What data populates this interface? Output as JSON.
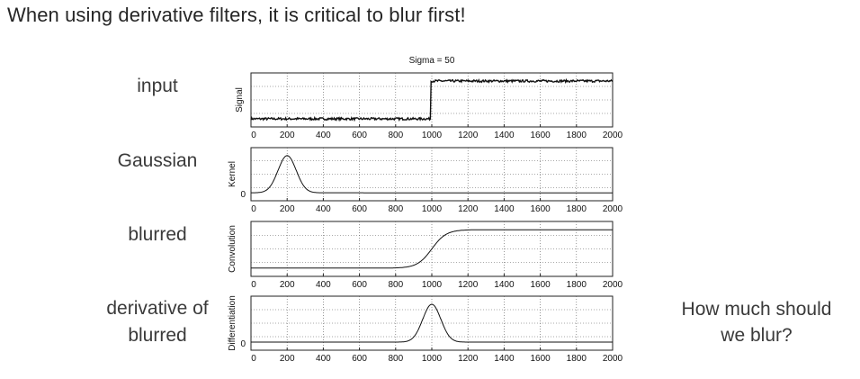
{
  "slide": {
    "title": "When using derivative filters, it is critical to blur first!",
    "side_note": "How much should we blur?"
  },
  "row_labels": [
    "input",
    "Gaussian",
    "blurred",
    "derivative of blurred"
  ],
  "chart_data": {
    "type": "line",
    "title": "Sigma = 50",
    "xlim": [
      0,
      2000
    ],
    "x_ticks": [
      0,
      200,
      400,
      600,
      800,
      1000,
      1200,
      1400,
      1600,
      1800,
      2000
    ],
    "grid": true,
    "panels": [
      {
        "ylabel": "Signal",
        "y_ticks": [],
        "series": [
          {
            "description": "noisy step",
            "x": [
              0,
              995,
              1005,
              2000
            ],
            "y": [
              0,
              0,
              1,
              1
            ],
            "noise": 0.03
          }
        ]
      },
      {
        "ylabel": "Kernel",
        "y_ticks": [
          "0"
        ],
        "series": [
          {
            "description": "gaussian kernel",
            "center": 200,
            "sigma": 50,
            "peak": 1,
            "baseline": 0
          }
        ]
      },
      {
        "ylabel": "Convolution",
        "y_ticks": [],
        "series": [
          {
            "description": "smoothed step",
            "x": [
              0,
              850,
              1000,
              1150,
              2000
            ],
            "y": [
              0,
              0.02,
              0.5,
              0.98,
              1
            ]
          }
        ]
      },
      {
        "ylabel": "Differentiation",
        "y_ticks": [
          "0"
        ],
        "series": [
          {
            "description": "gaussian bump",
            "center": 1000,
            "sigma": 50,
            "peak": 1,
            "baseline": 0
          }
        ]
      }
    ]
  }
}
